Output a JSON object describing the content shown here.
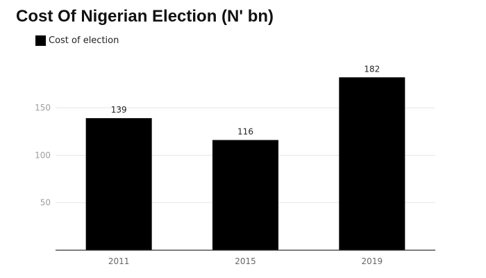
{
  "chart_data": {
    "type": "bar",
    "title": "Cost Of Nigerian Election (N' bn)",
    "xlabel": "",
    "ylabel": "",
    "categories": [
      "2011",
      "2015",
      "2019"
    ],
    "series": [
      {
        "name": "Cost of election",
        "values": [
          139,
          116,
          182
        ],
        "color": "#000000"
      }
    ],
    "data_labels": [
      "139",
      "116",
      "182"
    ],
    "ylim": [
      0,
      200
    ],
    "yticks": [
      50,
      100,
      150
    ],
    "ytick_labels": [
      "50",
      "100",
      "150"
    ],
    "grid": true,
    "legend": "top-left"
  }
}
